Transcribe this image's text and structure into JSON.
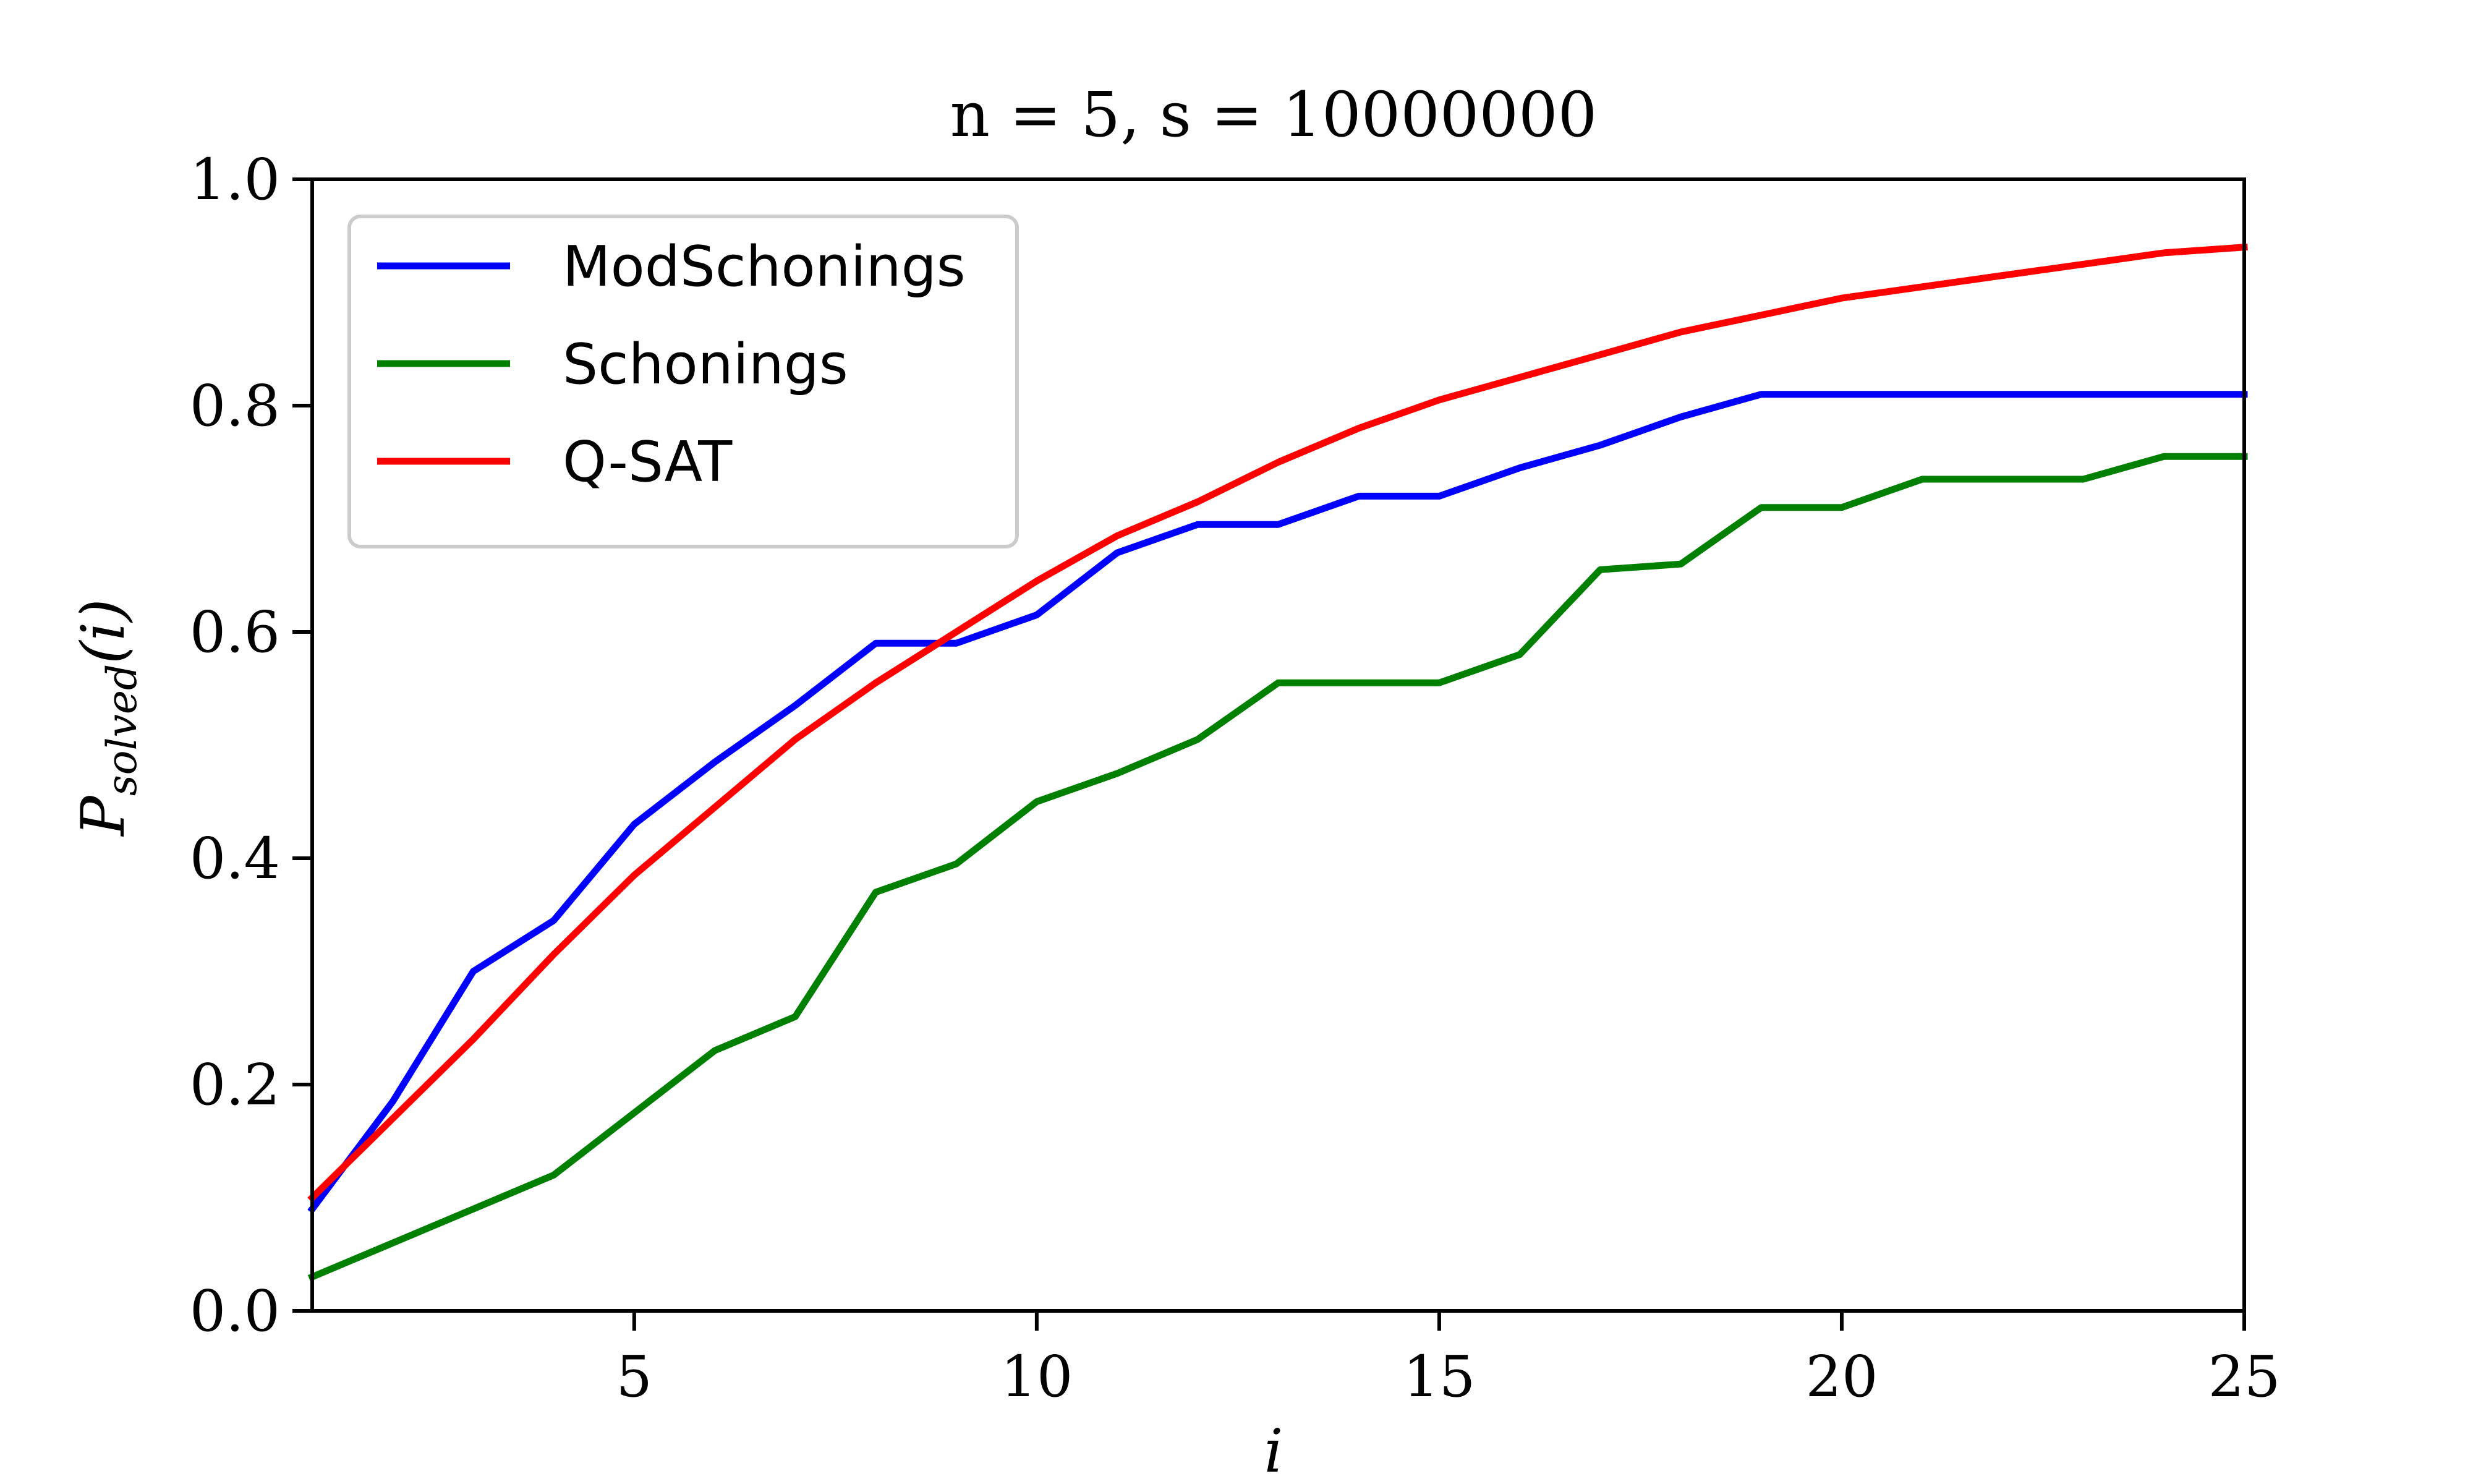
{
  "chart_data": {
    "type": "line",
    "title": "n = 5, s = 10000000",
    "xlabel": "i",
    "ylabel": "P_solved(i)",
    "ylabel_main": "P",
    "ylabel_sub": "solved",
    "ylabel_arg": "(i)",
    "xlim": [
      1,
      25
    ],
    "ylim": [
      0,
      1
    ],
    "xticks": [
      5,
      10,
      15,
      20,
      25
    ],
    "xtick_labels": [
      "5",
      "10",
      "15",
      "20",
      "25"
    ],
    "yticks": [
      0,
      0.2,
      0.4,
      0.6,
      0.8,
      1.0
    ],
    "ytick_labels": [
      "0.0",
      "0.2",
      "0.4",
      "0.6",
      "0.8",
      "1.0"
    ],
    "grid": false,
    "legend_position": "top-left",
    "x": [
      1,
      2,
      3,
      4,
      5,
      6,
      7,
      8,
      9,
      10,
      11,
      12,
      13,
      14,
      15,
      16,
      17,
      18,
      19,
      20,
      21,
      22,
      23,
      24,
      25
    ],
    "series": [
      {
        "name": "ModSchonings",
        "color": "#0000ff",
        "values": [
          0.09,
          0.185,
          0.3,
          0.345,
          0.43,
          0.485,
          0.535,
          0.59,
          0.59,
          0.615,
          0.67,
          0.695,
          0.695,
          0.72,
          0.72,
          0.745,
          0.765,
          0.79,
          0.81,
          0.81,
          0.81,
          0.81,
          0.81,
          0.81,
          0.81
        ]
      },
      {
        "name": "Schonings",
        "color": "#008000",
        "values": [
          0.03,
          0.06,
          0.09,
          0.12,
          0.175,
          0.23,
          0.26,
          0.37,
          0.395,
          0.45,
          0.475,
          0.505,
          0.555,
          0.555,
          0.555,
          0.58,
          0.655,
          0.66,
          0.71,
          0.71,
          0.735,
          0.735,
          0.735,
          0.755,
          0.755
        ]
      },
      {
        "name": "Q-SAT",
        "color": "#ff0000",
        "values": [
          0.1,
          0.17,
          0.24,
          0.315,
          0.385,
          0.445,
          0.505,
          0.555,
          0.6,
          0.645,
          0.685,
          0.715,
          0.75,
          0.78,
          0.805,
          0.825,
          0.845,
          0.865,
          0.88,
          0.895,
          0.905,
          0.915,
          0.925,
          0.935,
          0.94
        ]
      }
    ]
  }
}
